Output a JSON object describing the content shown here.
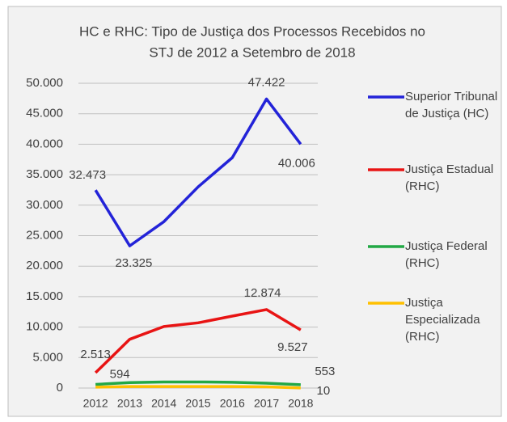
{
  "chart_data": {
    "type": "line",
    "title": [
      "HC e RHC: Tipo de Justiça dos Processos Recebidos no",
      "STJ de 2012 a Setembro de 2018"
    ],
    "categories": [
      "2012",
      "2013",
      "2014",
      "2015",
      "2016",
      "2017",
      "2018"
    ],
    "series": [
      {
        "name": "Superior Tribunal de Justiça (HC)",
        "color": "#2323d8",
        "values": [
          32473,
          23325,
          27300,
          33000,
          37800,
          47422,
          40006
        ],
        "value_labels": [
          "32.473",
          "23.325",
          null,
          null,
          null,
          "47.422",
          "40.006"
        ]
      },
      {
        "name": "Justiça Estadual (RHC)",
        "color": "#e81414",
        "values": [
          2513,
          8000,
          10100,
          10700,
          11800,
          12874,
          9527
        ],
        "value_labels": [
          "2.513",
          null,
          null,
          null,
          null,
          "12.874",
          "9.527"
        ]
      },
      {
        "name": "Justiça Federal (RHC)",
        "color": "#22a845",
        "values": [
          594,
          900,
          1000,
          1000,
          950,
          800,
          553
        ],
        "value_labels": [
          "594",
          null,
          null,
          null,
          null,
          null,
          "553"
        ]
      },
      {
        "name": "Justiça Especializada (RHC)",
        "color": "#ffc000",
        "values": [
          150,
          250,
          250,
          250,
          250,
          200,
          10
        ],
        "value_labels": [
          null,
          null,
          null,
          null,
          null,
          null,
          "10"
        ]
      }
    ],
    "ylim": [
      0,
      50000
    ],
    "yticks": [
      0,
      {
        "value": 5000,
        "label": "5.000"
      },
      {
        "value": 10000,
        "label": "10.000"
      },
      {
        "value": 15000,
        "label": "15.000"
      },
      {
        "value": 20000,
        "label": "20.000"
      },
      {
        "value": 25000,
        "label": "25.000"
      },
      {
        "value": 30000,
        "label": "30.000"
      },
      {
        "value": 35000,
        "label": "35.000"
      },
      {
        "value": 40000,
        "label": "40.000"
      },
      {
        "value": 45000,
        "label": "45.000"
      },
      {
        "value": 50000,
        "label": "50.000"
      }
    ],
    "grid": true
  }
}
